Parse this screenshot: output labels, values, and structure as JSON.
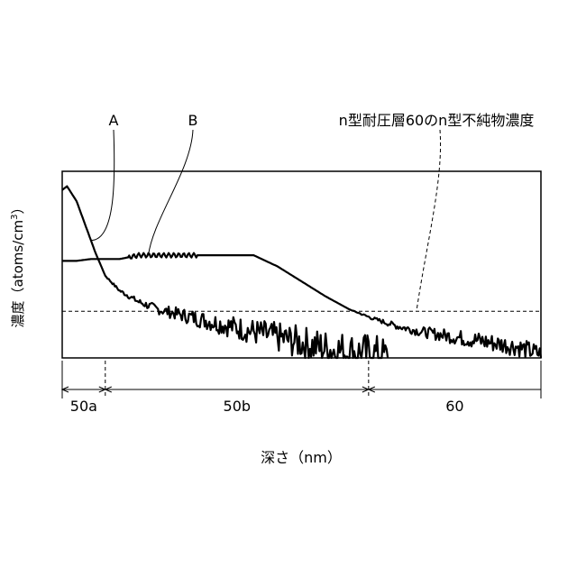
{
  "chart_data": {
    "type": "line",
    "xlabel": "深さ（nm）",
    "ylabel": "濃度（atoms/cm",
    "ylabel_sup": "3",
    "ylabel_close": "）",
    "x_scale": "linear",
    "y_scale": "log",
    "ticks": "none",
    "grid": false,
    "x_range": [
      0,
      100
    ],
    "y_range": [
      0,
      100
    ],
    "series": [
      {
        "name": "A",
        "x": [
          0,
          1,
          3,
          5,
          7,
          9,
          12,
          16,
          20,
          25,
          30,
          35,
          40,
          45,
          50,
          55,
          60,
          65,
          68
        ],
        "y": [
          90,
          92,
          84,
          70,
          56,
          44,
          36,
          30,
          26,
          23,
          20,
          17,
          14,
          11,
          8,
          5,
          3,
          2,
          0
        ]
      },
      {
        "name": "B",
        "x": [
          0,
          3,
          6,
          9,
          12,
          16,
          20,
          25,
          30,
          35,
          40,
          45,
          50,
          55,
          60,
          65,
          70,
          75,
          80,
          85,
          90,
          95,
          100
        ],
        "y": [
          52,
          52,
          53,
          53,
          53,
          55,
          55,
          55,
          55,
          55,
          55,
          49,
          41,
          33,
          26,
          21,
          17,
          14,
          12,
          10,
          8,
          6,
          2
        ]
      }
    ],
    "reference_line": {
      "label": "n型耐圧層60のn型不純物濃度",
      "y": 25
    },
    "region_labels": [
      "50a",
      "50b",
      "60"
    ],
    "region_bounds": [
      0,
      9,
      64,
      100
    ]
  }
}
